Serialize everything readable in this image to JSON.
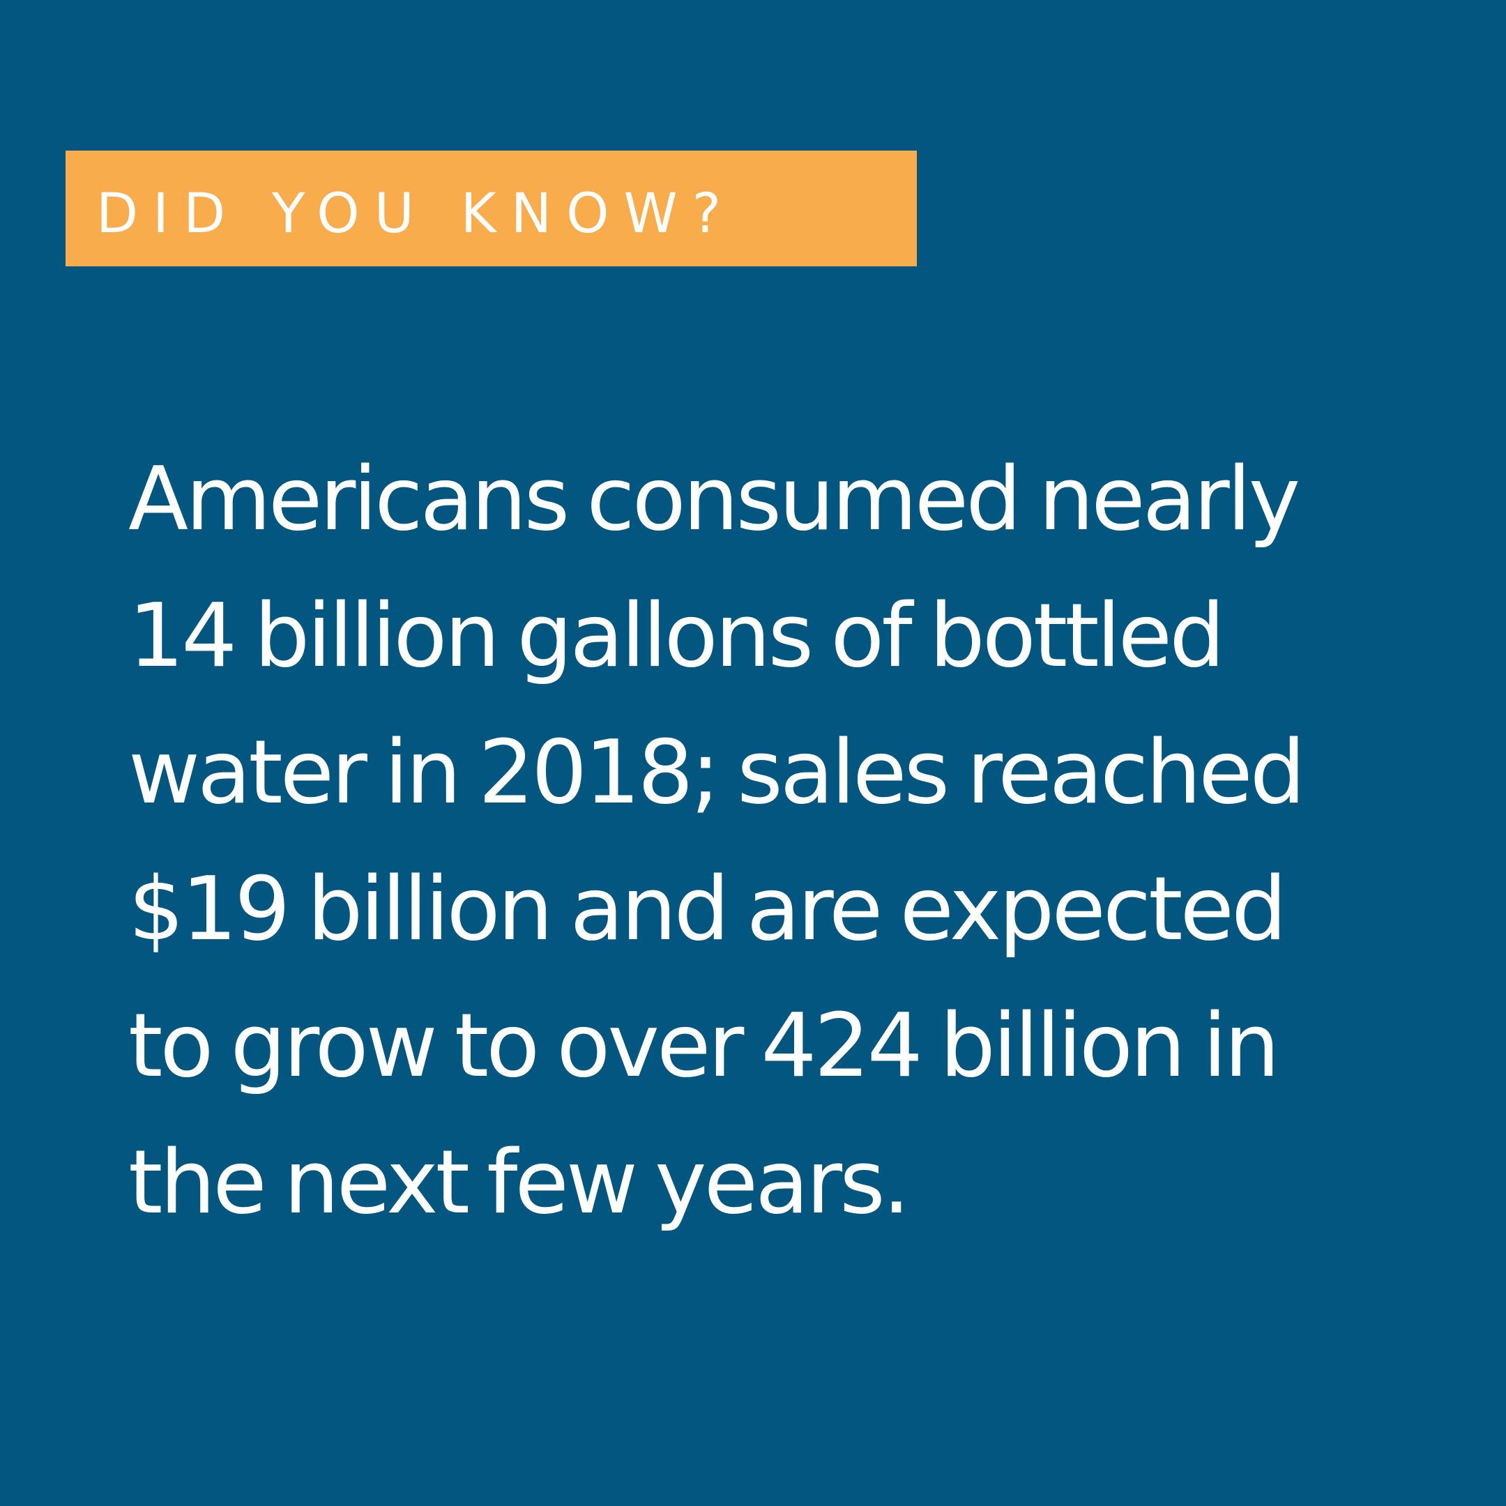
{
  "badge": {
    "label": "DID YOU KNOW?",
    "background_color": "#f9ac4c",
    "text_color": "#ffffff"
  },
  "fact": {
    "lines": [
      "Americans consumed nearly",
      "14 billion gallons of bottled",
      "water in 2018; sales reached",
      "$19 billion and are expected",
      "to grow to over 424 billion in",
      "the next few years."
    ],
    "text_color": "#ffffff"
  },
  "background_color": "#03567f"
}
